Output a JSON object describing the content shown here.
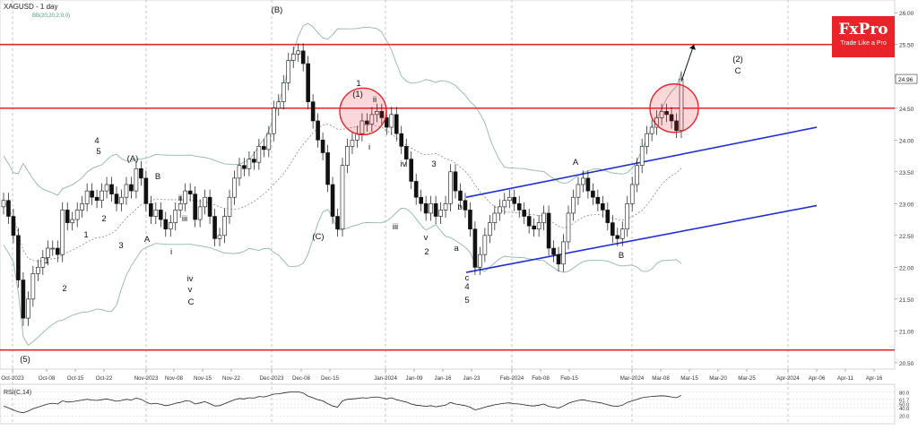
{
  "symbol_title": "XAGUSD - 1 day",
  "indicator_label": "BB(20,20,2,0,0)",
  "rsi_label": "RSI(C,14)",
  "logo": {
    "name": "FxPro",
    "tagline": "Trade Like a Pro"
  },
  "current_price_label": "24.96",
  "colors": {
    "bull": "#ffffff",
    "bear": "#111111",
    "level": "#e8232a",
    "channel": "#1f2fd6",
    "band": "#8fb7a8",
    "grid": "#9aa0a6"
  },
  "chart_data": {
    "type": "candlestick",
    "title": "XAGUSD - 1 day",
    "y_ticks": [
      "26.00",
      "25.50",
      "25.00",
      "24.50",
      "24.00",
      "23.50",
      "23.00",
      "22.50",
      "22.00",
      "21.50",
      "21.00",
      "20.50"
    ],
    "ylim": [
      20.4,
      26.2
    ],
    "x_ticks": [
      "Oct-2023",
      "Oct-08",
      "Oct-15",
      "Oct-22",
      "Nov-2023",
      "Nov-08",
      "Nov-15",
      "Nov-22",
      "Dec-2023",
      "Dec-08",
      "Dec-15",
      "Jan-2024",
      "Jan-09",
      "Jan-16",
      "Jan-23",
      "Feb-2024",
      "Feb-08",
      "Feb-15",
      "Mar-2024",
      "Mar-08",
      "Mar-15",
      "Mar-20",
      "Mar-25",
      "Apr-2024",
      "Apr-06",
      "Apr-11",
      "Apr-16"
    ],
    "horizontal_levels": [
      25.5,
      24.5,
      20.7
    ],
    "channel": {
      "upper": {
        "from": [
          "Jan-22",
          23.1
        ],
        "to": [
          "Apr-06",
          24.2
        ]
      },
      "lower": {
        "from": [
          "Jan-22",
          21.9
        ],
        "to": [
          "Apr-06",
          22.95
        ]
      }
    },
    "closes": [
      23.05,
      22.8,
      22.5,
      21.8,
      21.2,
      21.5,
      21.9,
      22.0,
      22.15,
      22.3,
      22.3,
      22.2,
      22.9,
      22.7,
      22.75,
      22.9,
      23.0,
      23.2,
      23.1,
      23.05,
      23.2,
      23.3,
      23.15,
      23.0,
      23.1,
      23.3,
      23.2,
      23.55,
      23.4,
      23.0,
      22.8,
      22.9,
      22.75,
      22.6,
      22.7,
      22.9,
      23.0,
      23.2,
      23.15,
      22.75,
      22.95,
      23.1,
      22.8,
      22.45,
      22.5,
      22.8,
      23.1,
      23.4,
      23.6,
      23.55,
      23.7,
      23.65,
      23.9,
      23.85,
      24.1,
      24.5,
      24.6,
      24.9,
      25.25,
      25.35,
      25.4,
      25.2,
      24.6,
      24.3,
      24.0,
      23.8,
      23.3,
      22.8,
      22.6,
      23.6,
      23.9,
      24.0,
      24.1,
      24.3,
      24.25,
      24.4,
      24.45,
      24.35,
      24.2,
      24.4,
      24.1,
      23.9,
      23.7,
      23.35,
      23.1,
      23.0,
      22.85,
      23.0,
      22.8,
      22.9,
      23.0,
      23.5,
      23.2,
      23.05,
      22.9,
      22.6,
      22.0,
      22.2,
      22.5,
      22.7,
      22.85,
      22.95,
      23.05,
      23.1,
      23.0,
      22.9,
      22.8,
      22.65,
      22.6,
      22.7,
      22.85,
      22.3,
      22.2,
      22.05,
      22.4,
      22.85,
      23.1,
      23.3,
      23.4,
      23.2,
      23.1,
      23.0,
      22.9,
      22.7,
      22.5,
      22.45,
      22.6,
      23.0,
      23.3,
      23.6,
      23.9,
      24.1,
      24.2,
      24.35,
      24.45,
      24.4,
      24.3,
      24.15,
      24.96
    ],
    "moves": [
      {
        "index": 306,
        "price": 25.35
      },
      {
        "index": 400,
        "price": 24.45
      }
    ],
    "wave_labels": [
      "(5)",
      "1",
      "2",
      "1",
      "2",
      "3",
      "4",
      "5",
      "(A)",
      "A",
      "B",
      "i",
      "ii",
      "iii",
      "iv",
      "v",
      "C",
      "(B)",
      "(C)",
      "1",
      "2",
      "3",
      "4",
      "5",
      "(1)",
      "i",
      "ii",
      "iii",
      "iv",
      "v",
      "a",
      "b",
      "c",
      "A",
      "B",
      "(2)",
      "C"
    ],
    "rsi": {
      "label": "RSI(C,14)",
      "y_ticks": [
        "80.0",
        "61.7",
        "50.0",
        "40.0",
        "20.0"
      ],
      "ylim": [
        0,
        100
      ],
      "values": [
        45,
        40,
        35,
        30,
        28,
        32,
        38,
        42,
        46,
        50,
        52,
        50,
        58,
        55,
        56,
        58,
        60,
        62,
        60,
        59,
        61,
        63,
        60,
        57,
        59,
        62,
        60,
        65,
        62,
        55,
        50,
        52,
        49,
        46,
        48,
        52,
        54,
        58,
        57,
        50,
        53,
        56,
        51,
        45,
        46,
        51,
        56,
        61,
        64,
        63,
        66,
        65,
        69,
        68,
        71,
        75,
        76,
        78,
        80,
        81,
        81,
        78,
        70,
        66,
        61,
        58,
        51,
        45,
        42,
        58,
        62,
        63,
        64,
        66,
        65,
        67,
        68,
        66,
        63,
        66,
        61,
        58,
        55,
        50,
        47,
        46,
        44,
        46,
        43,
        45,
        47,
        54,
        50,
        48,
        46,
        42,
        35,
        38,
        42,
        45,
        48,
        50,
        52,
        53,
        51,
        50,
        48,
        46,
        45,
        47,
        50,
        44,
        42,
        40,
        45,
        52,
        56,
        59,
        61,
        58,
        56,
        54,
        52,
        48,
        45,
        44,
        47,
        54,
        58,
        62,
        66,
        68,
        69,
        70,
        71,
        70,
        68,
        66,
        72
      ]
    }
  }
}
